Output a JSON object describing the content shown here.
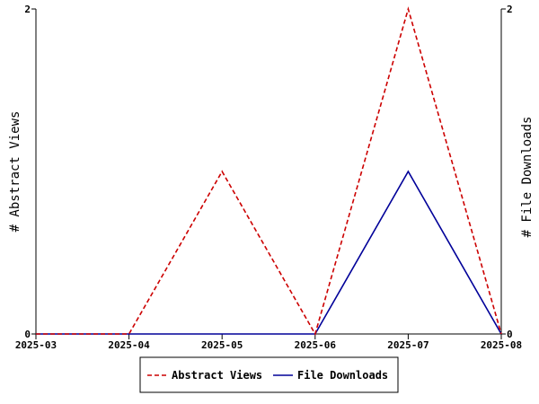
{
  "chart_data": {
    "type": "line",
    "categories": [
      "2025-03",
      "2025-04",
      "2025-05",
      "2025-06",
      "2025-07",
      "2025-08"
    ],
    "series": [
      {
        "name": "Abstract Views",
        "values": [
          0,
          0,
          1,
          0,
          2,
          0
        ],
        "color": "#cc0000",
        "style": "dashed",
        "axis": "left"
      },
      {
        "name": "File Downloads",
        "values": [
          0,
          0,
          0,
          0,
          1,
          0
        ],
        "color": "#000099",
        "style": "solid",
        "axis": "right"
      }
    ],
    "ylabel": "# Abstract Views",
    "ylabel_right": "# File Downloads",
    "ylim": [
      0,
      2
    ],
    "ylim_right": [
      0,
      2
    ],
    "yticks": [
      "0",
      "2"
    ],
    "yticks_right": [
      "0",
      "2"
    ],
    "grid": false,
    "legend_position": "bottom"
  }
}
